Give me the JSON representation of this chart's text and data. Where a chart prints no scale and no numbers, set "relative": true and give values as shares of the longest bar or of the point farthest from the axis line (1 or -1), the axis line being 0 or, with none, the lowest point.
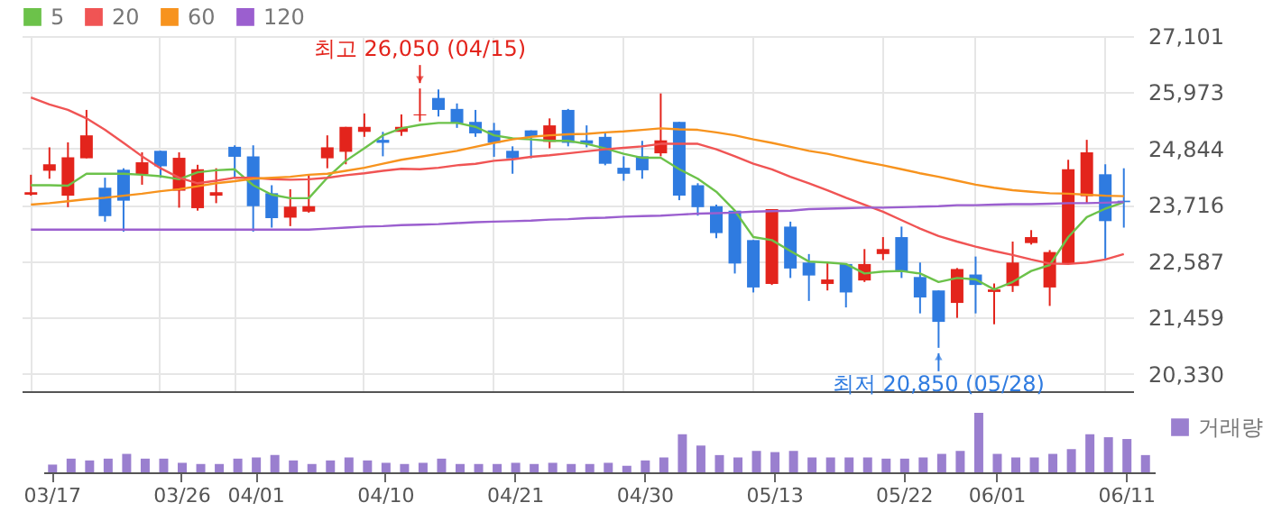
{
  "chart_data": [
    {
      "type": "candlestick",
      "tick_labels": "y",
      "grid": true,
      "legend": "top left",
      "categories": [
        null,
        null,
        null,
        null,
        null,
        null,
        null,
        null,
        null,
        null,
        null,
        null,
        null,
        null,
        null,
        null,
        null,
        null,
        null,
        null,
        null,
        null,
        null,
        null,
        null,
        null,
        null,
        null,
        null,
        null,
        null,
        null,
        null,
        null,
        null,
        null,
        null,
        null,
        null,
        null,
        null,
        null,
        null,
        null,
        null,
        null,
        null,
        null,
        null,
        null,
        null,
        null,
        null,
        null,
        null,
        null,
        null,
        null,
        null,
        null
      ],
      "ylim": [
        19980,
        27101
      ],
      "yticks": [
        {
          "value": 20330,
          "label": "20,330"
        },
        {
          "value": 21459,
          "label": "21,459"
        },
        {
          "value": 22587,
          "label": "22,587"
        },
        {
          "value": 23716,
          "label": "23,716"
        },
        {
          "value": 24844,
          "label": "24,844"
        },
        {
          "value": 25973,
          "label": "25,973"
        },
        {
          "value": 27101,
          "label": "27,101"
        }
      ],
      "ohlc": [
        [
          23920,
          24320,
          23900,
          23970
        ],
        [
          24400,
          24870,
          24240,
          24530
        ],
        [
          23900,
          24970,
          23670,
          24670
        ],
        [
          24650,
          25620,
          24650,
          25110
        ],
        [
          24060,
          24260,
          23380,
          23490
        ],
        [
          24420,
          24450,
          23180,
          23800
        ],
        [
          24330,
          24770,
          24120,
          24570
        ],
        [
          24800,
          24800,
          24260,
          24490
        ],
        [
          24000,
          24770,
          23660,
          24660
        ],
        [
          23650,
          24520,
          23600,
          24430
        ],
        [
          23900,
          24450,
          23750,
          23970
        ],
        [
          24880,
          24910,
          24260,
          24680
        ],
        [
          24690,
          24910,
          23180,
          23690
        ],
        [
          23950,
          24110,
          23260,
          23450
        ],
        [
          23460,
          24030,
          23290,
          23680
        ],
        [
          23580,
          24330,
          23560,
          23690
        ],
        [
          24650,
          25110,
          24450,
          24870
        ],
        [
          24780,
          25280,
          24530,
          25280
        ],
        [
          25180,
          25550,
          25080,
          25280
        ],
        [
          25020,
          25180,
          24690,
          24960
        ],
        [
          25180,
          25530,
          25100,
          25280
        ],
        [
          25510,
          26050,
          25390,
          25530
        ],
        [
          25860,
          26030,
          25490,
          25620
        ],
        [
          25640,
          25750,
          25260,
          25350
        ],
        [
          25380,
          25620,
          25080,
          25150
        ],
        [
          25210,
          25360,
          24680,
          24960
        ],
        [
          24800,
          24890,
          24340,
          24650
        ],
        [
          25210,
          25210,
          24650,
          25080
        ],
        [
          24980,
          25450,
          24850,
          25310
        ],
        [
          25620,
          25640,
          24890,
          24960
        ],
        [
          25010,
          25310,
          24870,
          24940
        ],
        [
          25080,
          25170,
          24510,
          24540
        ],
        [
          24460,
          24690,
          24200,
          24340
        ],
        [
          24690,
          25000,
          24240,
          24410
        ],
        [
          24750,
          25950,
          24690,
          25010
        ],
        [
          25380,
          25380,
          23810,
          23900
        ],
        [
          24110,
          24150,
          23500,
          23670
        ],
        [
          23690,
          23720,
          23050,
          23150
        ],
        [
          23600,
          23600,
          22340,
          22540
        ],
        [
          23010,
          23010,
          21960,
          22060
        ],
        [
          22130,
          23630,
          22110,
          23630
        ],
        [
          23280,
          23380,
          22250,
          22440
        ],
        [
          22560,
          22730,
          21790,
          22300
        ],
        [
          22130,
          22560,
          22000,
          22220
        ],
        [
          22530,
          22540,
          21660,
          21960
        ],
        [
          22200,
          22830,
          22170,
          22530
        ],
        [
          22730,
          23070,
          22610,
          22830
        ],
        [
          23070,
          23280,
          22250,
          22380
        ],
        [
          22270,
          22560,
          21540,
          21860
        ],
        [
          22000,
          22000,
          20850,
          21370
        ],
        [
          21750,
          22450,
          21450,
          22430
        ],
        [
          22320,
          22680,
          21540,
          22110
        ],
        [
          21970,
          22140,
          21320,
          22020
        ],
        [
          22090,
          22980,
          21970,
          22560
        ],
        [
          22950,
          23210,
          22920,
          23070
        ],
        [
          22060,
          22810,
          21690,
          22770
        ],
        [
          22540,
          24620,
          22540,
          24430
        ],
        [
          23890,
          25020,
          23750,
          24770
        ],
        [
          24330,
          24530,
          22620,
          23390
        ],
        [
          23800,
          24450,
          23260,
          23770
        ]
      ],
      "colors": [
        "#e3241c",
        "#e3241c",
        "#e3241c",
        "#e3241c",
        "#2f7be0",
        "#2f7be0",
        "#e3241c",
        "#2f7be0",
        "#e3241c",
        "#e3241c",
        "#e3241c",
        "#2f7be0",
        "#2f7be0",
        "#2f7be0",
        "#e3241c",
        "#e3241c",
        "#e3241c",
        "#e3241c",
        "#e3241c",
        "#2f7be0",
        "#e3241c",
        "#e3241c",
        "#2f7be0",
        "#2f7be0",
        "#2f7be0",
        "#2f7be0",
        "#2f7be0",
        "#2f7be0",
        "#e3241c",
        "#2f7be0",
        "#2f7be0",
        "#2f7be0",
        "#2f7be0",
        "#2f7be0",
        "#e3241c",
        "#2f7be0",
        "#2f7be0",
        "#2f7be0",
        "#2f7be0",
        "#2f7be0",
        "#e3241c",
        "#2f7be0",
        "#2f7be0",
        "#e3241c",
        "#2f7be0",
        "#e3241c",
        "#e3241c",
        "#2f7be0",
        "#2f7be0",
        "#2f7be0",
        "#e3241c",
        "#2f7be0",
        "#e3241c",
        "#e3241c",
        "#e3241c",
        "#e3241c",
        "#e3241c",
        "#e3241c",
        "#2f7be0",
        "#2f7be0"
      ],
      "series": [
        {
          "name": "5",
          "type": "line",
          "color": "#6cc24a",
          "values": [
            24110,
            24110,
            24100,
            24340,
            24340,
            24340,
            24320,
            24290,
            24230,
            24370,
            24410,
            24430,
            24110,
            23920,
            23850,
            23850,
            24260,
            24600,
            24850,
            25110,
            25250,
            25320,
            25360,
            25360,
            25280,
            25110,
            25050,
            25030,
            25000,
            25000,
            24940,
            24850,
            24740,
            24660,
            24660,
            24430,
            24240,
            23980,
            23600,
            23070,
            23010,
            22790,
            22580,
            22560,
            22530,
            22340,
            22380,
            22390,
            22340,
            22170,
            22250,
            22220,
            22020,
            22170,
            22390,
            22510,
            23070,
            23470,
            23640,
            23770
          ]
        },
        {
          "name": "20",
          "type": "line",
          "color": "#f05454",
          "values": [
            25870,
            25730,
            25620,
            25450,
            25220,
            24960,
            24690,
            24450,
            24260,
            24150,
            24200,
            24260,
            24260,
            24230,
            24220,
            24230,
            24260,
            24310,
            24350,
            24400,
            24440,
            24430,
            24460,
            24510,
            24540,
            24600,
            24630,
            24680,
            24710,
            24750,
            24790,
            24830,
            24860,
            24890,
            24940,
            24940,
            24940,
            24830,
            24690,
            24540,
            24430,
            24280,
            24150,
            24010,
            23860,
            23720,
            23580,
            23410,
            23240,
            23090,
            22980,
            22880,
            22790,
            22710,
            22620,
            22540,
            22530,
            22560,
            22620,
            22730
          ]
        },
        {
          "name": "60",
          "type": "line",
          "color": "#f7931e",
          "values": [
            23720,
            23750,
            23790,
            23830,
            23860,
            23900,
            23940,
            23990,
            24030,
            24090,
            24150,
            24190,
            24240,
            24260,
            24280,
            24320,
            24340,
            24400,
            24460,
            24540,
            24620,
            24680,
            24740,
            24800,
            24880,
            24960,
            25030,
            25080,
            25110,
            25130,
            25140,
            25170,
            25190,
            25220,
            25250,
            25230,
            25220,
            25170,
            25110,
            25030,
            24960,
            24880,
            24800,
            24740,
            24660,
            24580,
            24510,
            24430,
            24350,
            24280,
            24200,
            24120,
            24060,
            24010,
            23980,
            23950,
            23940,
            23920,
            23900,
            23890
          ]
        },
        {
          "name": "120",
          "type": "line",
          "color": "#9b5fcf",
          "values": [
            23220,
            23220,
            23220,
            23220,
            23220,
            23220,
            23220,
            23220,
            23220,
            23220,
            23220,
            23220,
            23220,
            23220,
            23220,
            23220,
            23240,
            23260,
            23280,
            23290,
            23310,
            23320,
            23330,
            23350,
            23370,
            23380,
            23390,
            23400,
            23420,
            23430,
            23450,
            23460,
            23480,
            23490,
            23500,
            23520,
            23540,
            23550,
            23560,
            23580,
            23590,
            23600,
            23630,
            23640,
            23650,
            23660,
            23660,
            23670,
            23680,
            23690,
            23710,
            23710,
            23720,
            23730,
            23730,
            23740,
            23750,
            23750,
            23760,
            23770
          ]
        }
      ],
      "annotations": [
        {
          "text": "최고 26,050 (04/15)",
          "y": 26050
        },
        {
          "text": "최저 20,850 (05/28)",
          "y": 20850
        }
      ]
    },
    {
      "type": "bar",
      "relative": true,
      "legend": "top right",
      "categories": [
        "03/17",
        null,
        null,
        null,
        null,
        null,
        null,
        "03/26",
        null,
        null,
        null,
        "04/01",
        null,
        null,
        null,
        null,
        null,
        null,
        "04/10",
        null,
        null,
        null,
        null,
        null,
        null,
        "04/21",
        null,
        null,
        null,
        null,
        null,
        null,
        "04/30",
        null,
        null,
        null,
        null,
        null,
        null,
        "05/13",
        null,
        null,
        null,
        null,
        null,
        null,
        "05/22",
        null,
        null,
        null,
        null,
        "06/01",
        null,
        null,
        null,
        null,
        null,
        null,
        "06/11",
        null
      ],
      "series": [
        {
          "name": "거래량",
          "color": "#9a7fcf",
          "values": [
            0.13,
            0.23,
            0.2,
            0.23,
            0.31,
            0.23,
            0.23,
            0.16,
            0.14,
            0.14,
            0.23,
            0.25,
            0.29,
            0.2,
            0.14,
            0.2,
            0.25,
            0.2,
            0.16,
            0.14,
            0.16,
            0.23,
            0.14,
            0.14,
            0.14,
            0.16,
            0.14,
            0.16,
            0.14,
            0.14,
            0.16,
            0.11,
            0.2,
            0.25,
            0.64,
            0.45,
            0.29,
            0.25,
            0.36,
            0.34,
            0.36,
            0.25,
            0.25,
            0.25,
            0.25,
            0.23,
            0.23,
            0.25,
            0.31,
            0.36,
            1,
            0.31,
            0.25,
            0.25,
            0.31,
            0.39,
            0.64,
            0.59,
            0.56,
            0.29
          ]
        }
      ]
    }
  ]
}
